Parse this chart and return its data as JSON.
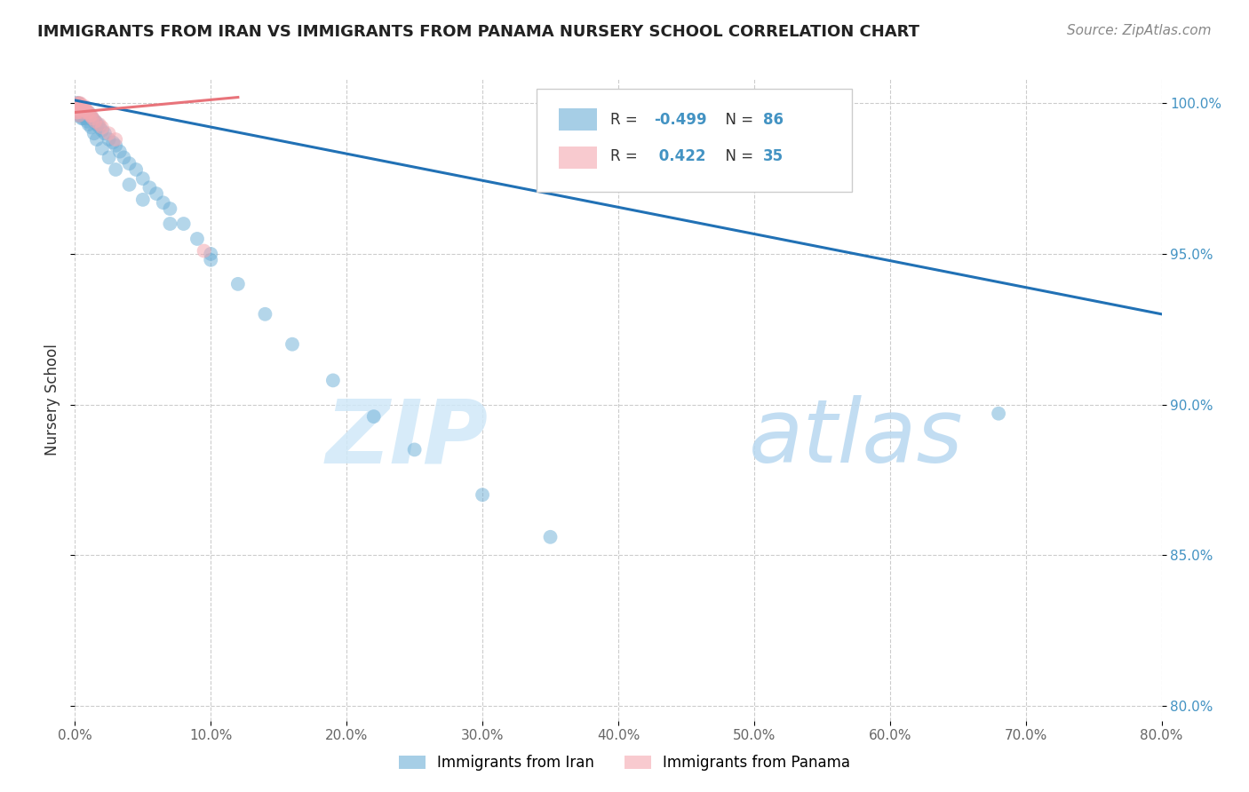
{
  "title": "IMMIGRANTS FROM IRAN VS IMMIGRANTS FROM PANAMA NURSERY SCHOOL CORRELATION CHART",
  "source": "Source: ZipAtlas.com",
  "ylabel": "Nursery School",
  "xlim": [
    0.0,
    0.8
  ],
  "ylim": [
    0.795,
    1.008
  ],
  "xticks": [
    0.0,
    0.1,
    0.2,
    0.3,
    0.4,
    0.5,
    0.6,
    0.7,
    0.8
  ],
  "xticklabels": [
    "0.0%",
    "10.0%",
    "20.0%",
    "30.0%",
    "40.0%",
    "50.0%",
    "60.0%",
    "70.0%",
    "80.0%"
  ],
  "yticks": [
    0.8,
    0.85,
    0.9,
    0.95,
    1.0
  ],
  "yticklabels": [
    "80.0%",
    "85.0%",
    "90.0%",
    "95.0%",
    "100.0%"
  ],
  "iran_color": "#6baed6",
  "panama_color": "#f4a8b0",
  "iran_line_color": "#2171b5",
  "panama_line_color": "#e8737a",
  "watermark_zip": "ZIP",
  "watermark_atlas": "atlas",
  "iran_x": [
    0.001,
    0.001,
    0.001,
    0.002,
    0.002,
    0.002,
    0.002,
    0.003,
    0.003,
    0.003,
    0.003,
    0.004,
    0.004,
    0.004,
    0.005,
    0.005,
    0.005,
    0.006,
    0.006,
    0.007,
    0.007,
    0.008,
    0.008,
    0.009,
    0.009,
    0.01,
    0.01,
    0.011,
    0.012,
    0.013,
    0.014,
    0.015,
    0.016,
    0.017,
    0.018,
    0.02,
    0.022,
    0.025,
    0.028,
    0.03,
    0.033,
    0.036,
    0.04,
    0.045,
    0.05,
    0.055,
    0.06,
    0.065,
    0.07,
    0.08,
    0.09,
    0.1,
    0.12,
    0.14,
    0.16,
    0.19,
    0.22,
    0.25,
    0.3,
    0.35,
    0.001,
    0.002,
    0.002,
    0.003,
    0.003,
    0.004,
    0.004,
    0.005,
    0.005,
    0.006,
    0.006,
    0.007,
    0.008,
    0.009,
    0.01,
    0.012,
    0.014,
    0.016,
    0.02,
    0.025,
    0.03,
    0.04,
    0.05,
    0.07,
    0.1,
    0.68
  ],
  "iran_y": [
    0.999,
    1.0,
    0.998,
    0.999,
    1.0,
    0.998,
    0.997,
    0.999,
    1.0,
    0.998,
    0.997,
    0.999,
    0.998,
    0.997,
    0.999,
    0.998,
    0.997,
    0.998,
    0.997,
    0.998,
    0.997,
    0.997,
    0.996,
    0.997,
    0.996,
    0.997,
    0.996,
    0.996,
    0.995,
    0.995,
    0.994,
    0.994,
    0.993,
    0.993,
    0.992,
    0.991,
    0.99,
    0.988,
    0.987,
    0.986,
    0.984,
    0.982,
    0.98,
    0.978,
    0.975,
    0.972,
    0.97,
    0.967,
    0.965,
    0.96,
    0.955,
    0.95,
    0.94,
    0.93,
    0.92,
    0.908,
    0.896,
    0.885,
    0.87,
    0.856,
    0.997,
    0.998,
    0.996,
    0.998,
    0.996,
    0.998,
    0.996,
    0.997,
    0.995,
    0.997,
    0.995,
    0.996,
    0.995,
    0.994,
    0.993,
    0.992,
    0.99,
    0.988,
    0.985,
    0.982,
    0.978,
    0.973,
    0.968,
    0.96,
    0.948,
    0.897
  ],
  "panama_x": [
    0.001,
    0.001,
    0.002,
    0.002,
    0.002,
    0.003,
    0.003,
    0.003,
    0.004,
    0.004,
    0.004,
    0.005,
    0.005,
    0.006,
    0.006,
    0.007,
    0.007,
    0.008,
    0.009,
    0.01,
    0.011,
    0.012,
    0.013,
    0.015,
    0.018,
    0.02,
    0.025,
    0.03,
    0.001,
    0.002,
    0.003,
    0.004,
    0.005,
    0.095,
    0.003
  ],
  "panama_y": [
    0.998,
    0.999,
    0.998,
    0.999,
    1.0,
    0.999,
    1.0,
    0.998,
    0.999,
    1.0,
    0.998,
    0.999,
    0.998,
    0.999,
    0.998,
    0.999,
    0.998,
    0.998,
    0.997,
    0.997,
    0.996,
    0.996,
    0.995,
    0.994,
    0.993,
    0.992,
    0.99,
    0.988,
    0.997,
    0.997,
    0.998,
    0.998,
    0.997,
    0.951,
    0.996
  ],
  "iran_line_x": [
    0.0,
    0.8
  ],
  "iran_line_y": [
    1.001,
    0.93
  ],
  "panama_line_x": [
    0.0,
    0.12
  ],
  "panama_line_y": [
    0.997,
    1.002
  ]
}
